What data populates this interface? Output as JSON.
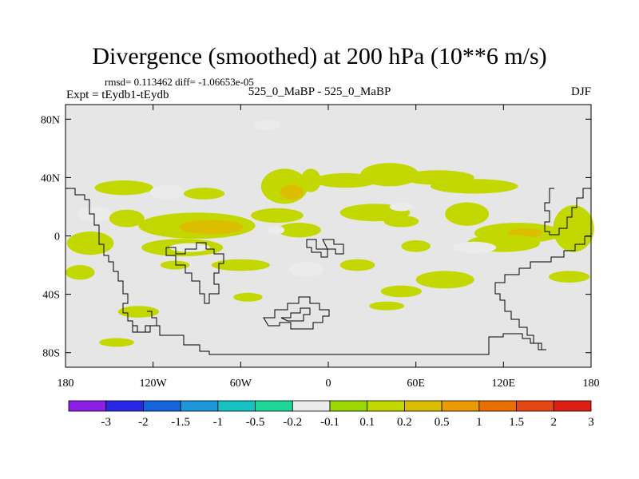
{
  "chart_data": {
    "type": "contour-map",
    "title": "Divergence (smoothed) at 200 hPa (10**6 m/s)",
    "stats": "rmsd= 0.113462 diff= -1.06653e-05",
    "expt": "Expt = tEydb1-tEydb",
    "case": "525_0_MaBP - 525_0_MaBP",
    "season": "DJF",
    "lon_range": [
      -180,
      180
    ],
    "lat_range": [
      -90,
      90
    ],
    "x_ticks": [
      {
        "value": -180,
        "label": "180"
      },
      {
        "value": -120,
        "label": "120W"
      },
      {
        "value": -60,
        "label": "60W"
      },
      {
        "value": 0,
        "label": "0"
      },
      {
        "value": 60,
        "label": "60E"
      },
      {
        "value": 120,
        "label": "120E"
      },
      {
        "value": 180,
        "label": "180"
      }
    ],
    "y_ticks": [
      {
        "value": 80,
        "label": "80N"
      },
      {
        "value": 40,
        "label": "40N"
      },
      {
        "value": 0,
        "label": "0"
      },
      {
        "value": -40,
        "label": "40S"
      },
      {
        "value": -80,
        "label": "80S"
      }
    ],
    "background_color": "#e6e6e6",
    "colorbar": {
      "levels": [
        "-3",
        "-2",
        "-1.5",
        "-1",
        "-0.5",
        "-0.2",
        "-0.1",
        "0.1",
        "0.2",
        "0.5",
        "1",
        "1.5",
        "2",
        "3"
      ],
      "colors": [
        "#8c1ee6",
        "#2828e6",
        "#1464dc",
        "#1e96dc",
        "#14c3c3",
        "#1ed79b",
        "#ebebeb",
        "#9bd700",
        "#c3d700",
        "#dcbe00",
        "#eb9b00",
        "#eb6e00",
        "#e64614",
        "#dc1e14"
      ]
    },
    "regions": [
      {
        "lon": -42,
        "lat": 76,
        "rx": 9,
        "ry": 3.5,
        "value": -0.15
      },
      {
        "lon": -30,
        "lat": 34,
        "rx": 16,
        "ry": 12,
        "value": 0.15
      },
      {
        "lon": -25,
        "lat": 30,
        "rx": 8,
        "ry": 5,
        "value": 0.3
      },
      {
        "lon": -12,
        "lat": 38,
        "rx": 7,
        "ry": 8,
        "value": 0.15
      },
      {
        "lon": 12,
        "lat": 38,
        "rx": 22,
        "ry": 5,
        "value": 0.15
      },
      {
        "lon": 42,
        "lat": 42,
        "rx": 20,
        "ry": 8,
        "value": 0.15
      },
      {
        "lon": 75,
        "lat": 40,
        "rx": 25,
        "ry": 5,
        "value": 0.15
      },
      {
        "lon": 100,
        "lat": 34,
        "rx": 30,
        "ry": 5,
        "value": 0.15
      },
      {
        "lon": -140,
        "lat": 33,
        "rx": 20,
        "ry": 5,
        "value": 0.15
      },
      {
        "lon": -110,
        "lat": 30,
        "rx": 12,
        "ry": 5,
        "value": -0.15
      },
      {
        "lon": -85,
        "lat": 29,
        "rx": 14,
        "ry": 4,
        "value": 0.15
      },
      {
        "lon": -160,
        "lat": 15,
        "rx": 12,
        "ry": 5,
        "value": -0.15
      },
      {
        "lon": -138,
        "lat": 12,
        "rx": 12,
        "ry": 6,
        "value": 0.15
      },
      {
        "lon": -90,
        "lat": 7,
        "rx": 40,
        "ry": 9,
        "value": 0.15
      },
      {
        "lon": -80,
        "lat": 6,
        "rx": 22,
        "ry": 5,
        "value": 0.3
      },
      {
        "lon": -35,
        "lat": 14,
        "rx": 18,
        "ry": 5,
        "value": 0.15
      },
      {
        "lon": -20,
        "lat": 4,
        "rx": 15,
        "ry": 5,
        "value": 0.15
      },
      {
        "lon": -36,
        "lat": 4,
        "rx": 6,
        "ry": 3,
        "value": -0.15
      },
      {
        "lon": 32,
        "lat": 16,
        "rx": 24,
        "ry": 6,
        "value": 0.15
      },
      {
        "lon": 50,
        "lat": 10,
        "rx": 12,
        "ry": 4,
        "value": 0.15
      },
      {
        "lon": 50,
        "lat": 20,
        "rx": 8,
        "ry": 3,
        "value": -0.15
      },
      {
        "lon": 95,
        "lat": 15,
        "rx": 15,
        "ry": 8,
        "value": 0.15
      },
      {
        "lon": 130,
        "lat": 2,
        "rx": 30,
        "ry": 7,
        "value": 0.15
      },
      {
        "lon": 135,
        "lat": 2,
        "rx": 12,
        "ry": 3,
        "value": 0.4
      },
      {
        "lon": 168,
        "lat": 5,
        "rx": 14,
        "ry": 16,
        "value": 0.15
      },
      {
        "lon": 120,
        "lat": -5,
        "rx": 25,
        "ry": 6,
        "value": 0.15
      },
      {
        "lon": 100,
        "lat": -8,
        "rx": 15,
        "ry": 4,
        "value": -0.15
      },
      {
        "lon": 60,
        "lat": -7,
        "rx": 10,
        "ry": 4,
        "value": 0.15
      },
      {
        "lon": -100,
        "lat": -8,
        "rx": 28,
        "ry": 6,
        "value": 0.15
      },
      {
        "lon": -95,
        "lat": -8,
        "rx": 14,
        "ry": 3,
        "value": -0.15
      },
      {
        "lon": -163,
        "lat": -5,
        "rx": 16,
        "ry": 8,
        "value": 0.15
      },
      {
        "lon": -170,
        "lat": -25,
        "rx": 10,
        "ry": 5,
        "value": 0.15
      },
      {
        "lon": -105,
        "lat": -20,
        "rx": 10,
        "ry": 3,
        "value": 0.15
      },
      {
        "lon": -60,
        "lat": -20,
        "rx": 20,
        "ry": 4,
        "value": 0.15
      },
      {
        "lon": -15,
        "lat": -23,
        "rx": 12,
        "ry": 5,
        "value": -0.15
      },
      {
        "lon": 20,
        "lat": -20,
        "rx": 12,
        "ry": 4,
        "value": 0.15
      },
      {
        "lon": 50,
        "lat": -38,
        "rx": 14,
        "ry": 4,
        "value": 0.15
      },
      {
        "lon": 80,
        "lat": -30,
        "rx": 20,
        "ry": 6,
        "value": 0.15
      },
      {
        "lon": 165,
        "lat": -28,
        "rx": 14,
        "ry": 4,
        "value": 0.15
      },
      {
        "lon": -130,
        "lat": -52,
        "rx": 14,
        "ry": 4,
        "value": 0.15
      },
      {
        "lon": -55,
        "lat": -42,
        "rx": 10,
        "ry": 3,
        "value": 0.15
      },
      {
        "lon": 40,
        "lat": -48,
        "rx": 12,
        "ry": 3,
        "value": 0.15
      },
      {
        "lon": -145,
        "lat": -73,
        "rx": 12,
        "ry": 3,
        "value": 0.15
      }
    ]
  }
}
